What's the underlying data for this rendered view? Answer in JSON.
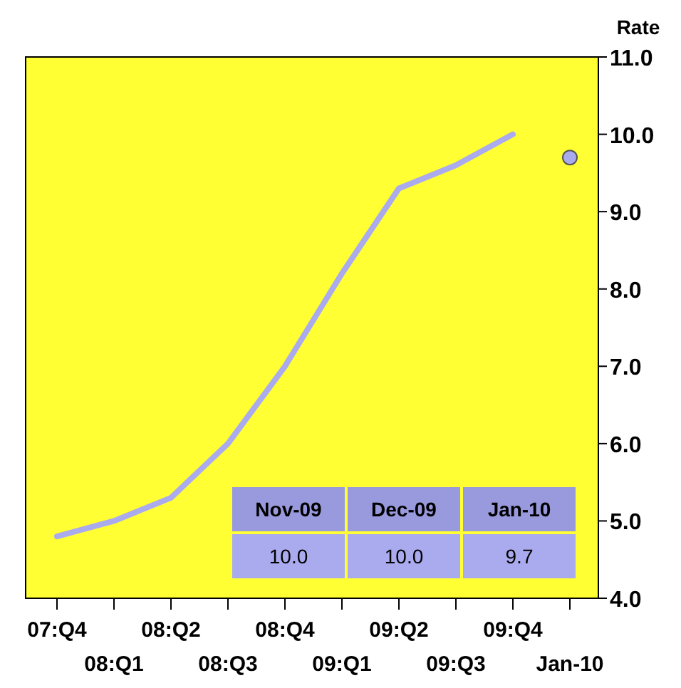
{
  "chart_data": {
    "type": "line",
    "ylabel": "Rate",
    "categories": [
      "07:Q4",
      "08:Q1",
      "08:Q2",
      "08:Q3",
      "08:Q4",
      "09:Q1",
      "09:Q2",
      "09:Q3",
      "09:Q4",
      "Jan-10"
    ],
    "series": [
      {
        "color": "#aaaaee",
        "values": [
          4.8,
          5.0,
          5.3,
          6.0,
          7.0,
          8.2,
          9.3,
          9.6,
          10.0,
          null
        ]
      },
      {
        "type": "scatter",
        "color": "#aaaaee",
        "marker": "circle",
        "values": [
          null,
          null,
          null,
          null,
          null,
          null,
          null,
          null,
          null,
          9.7
        ]
      }
    ],
    "ylim": [
      4,
      11
    ],
    "yticks": [
      {
        "value": 4,
        "label": "4.0"
      },
      {
        "value": 5,
        "label": "5.0"
      },
      {
        "value": 6,
        "label": "6.0"
      },
      {
        "value": 7,
        "label": "7.0"
      },
      {
        "value": 8,
        "label": "8.0"
      },
      {
        "value": 9,
        "label": "9.0"
      },
      {
        "value": 10,
        "label": "10.0"
      },
      {
        "value": 11,
        "label": "11.0"
      }
    ],
    "grid": false,
    "annotations": [
      "Nov-09",
      "Dec-09",
      "Jan-10",
      "10.0",
      "10.0",
      "9.7"
    ]
  }
}
